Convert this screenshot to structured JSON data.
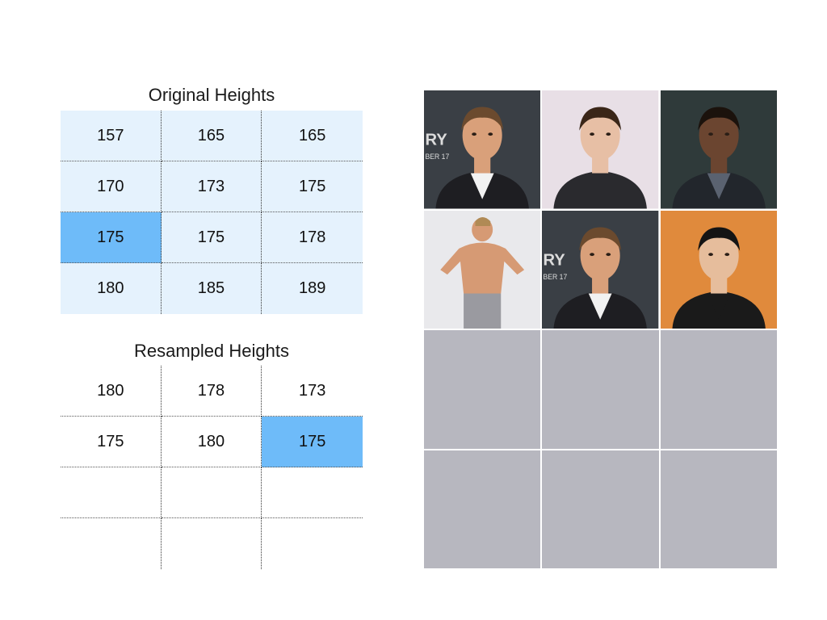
{
  "original": {
    "title": "Original Heights",
    "rows": [
      [
        "157",
        "165",
        "165"
      ],
      [
        "170",
        "173",
        "175"
      ],
      [
        "175",
        "175",
        "178"
      ],
      [
        "180",
        "185",
        "189"
      ]
    ],
    "highlight": [
      2,
      0
    ]
  },
  "resampled": {
    "title": "Resampled Heights",
    "rows": [
      [
        "180",
        "178",
        "173"
      ],
      [
        "175",
        "180",
        "175"
      ],
      [
        "",
        "",
        ""
      ],
      [
        "",
        "",
        ""
      ]
    ],
    "highlight": [
      1,
      2
    ]
  },
  "photos": {
    "filled": [
      {
        "icon": "portrait-photo-icon",
        "sign_text": "RY",
        "sign_sub": "BER 17"
      },
      {
        "icon": "portrait-photo-icon"
      },
      {
        "icon": "portrait-photo-icon"
      },
      {
        "icon": "torso-photo-icon"
      },
      {
        "icon": "portrait-photo-icon",
        "sign_text": "RY",
        "sign_sub": "BER 17"
      },
      {
        "icon": "portrait-photo-icon"
      }
    ],
    "empty_count": 6,
    "placeholder_color": "#b7b7bf"
  },
  "colors": {
    "cell_bg": "#e5f2fd",
    "highlight": "#6ebbf9"
  }
}
